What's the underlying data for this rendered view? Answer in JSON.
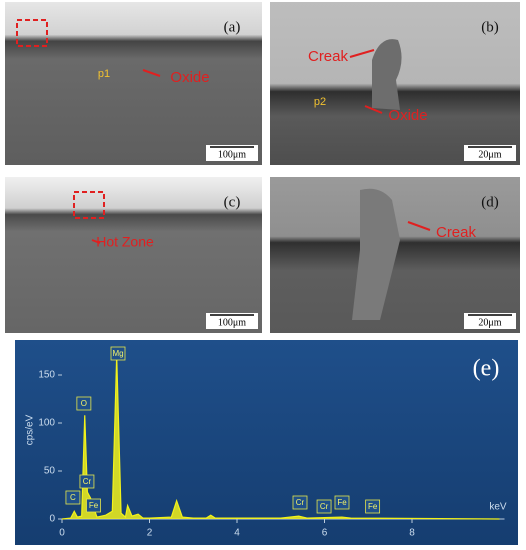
{
  "panels": [
    {
      "label": "(a)",
      "scale": "100μm",
      "notes": [
        "p1",
        "Oxide"
      ]
    },
    {
      "label": "(b)",
      "scale": "20μm",
      "notes": [
        "Creak",
        "p2",
        "Oxide"
      ]
    },
    {
      "label": "(c)",
      "scale": "100μm",
      "notes": [
        "Hot Zone"
      ]
    },
    {
      "label": "(d)",
      "scale": "20μm",
      "notes": [
        "Creak"
      ]
    }
  ],
  "chart_data": {
    "type": "line",
    "panel_label": "(e)",
    "ylabel": "cps/eV",
    "xlabel": "keV",
    "x": [
      0,
      0.2,
      0.28,
      0.35,
      0.45,
      0.52,
      0.58,
      0.65,
      0.72,
      0.8,
      1.0,
      1.15,
      1.25,
      1.35,
      1.45,
      1.5,
      1.6,
      1.74,
      1.85,
      2.0,
      2.5,
      2.62,
      2.75,
      3.0,
      3.3,
      3.4,
      3.5,
      4.0,
      5.0,
      5.41,
      5.6,
      6.4,
      6.6,
      10
    ],
    "series": [
      {
        "color": "#f2f21a",
        "values": [
          0,
          1,
          8,
          2,
          3,
          108,
          28,
          22,
          12,
          2,
          4,
          8,
          170,
          6,
          2,
          14,
          3,
          5,
          1,
          1,
          2,
          19,
          2,
          1,
          1,
          4,
          1,
          1,
          1,
          3,
          1,
          2,
          1,
          0
        ]
      }
    ],
    "xlim": [
      0,
      10
    ],
    "ylim": [
      0,
      175
    ],
    "xticks": [
      0,
      2,
      4,
      6,
      8
    ],
    "yticks": [
      0,
      50,
      100,
      150
    ],
    "peak_labels": [
      {
        "label": "C",
        "x": 0.25
      },
      {
        "label": "O",
        "x": 0.5
      },
      {
        "label": "Cr",
        "x": 0.57
      },
      {
        "label": "Fe",
        "x": 0.72
      },
      {
        "label": "Mg",
        "x": 1.28
      },
      {
        "label": "Cr",
        "x": 5.44
      },
      {
        "label": "Cr",
        "x": 5.99
      },
      {
        "label": "Fe",
        "x": 6.4
      },
      {
        "label": "Fe",
        "x": 7.1
      }
    ]
  }
}
